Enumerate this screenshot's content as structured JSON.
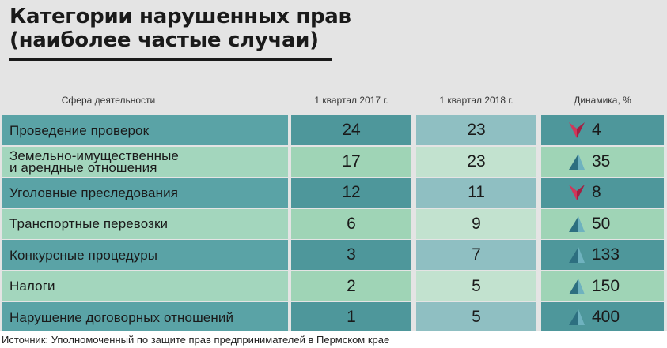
{
  "title_line1": "Категории нарушенных прав",
  "title_line2": "(наиболее частые случаи)",
  "headers": {
    "category": "Сфера деятельности",
    "q2017": "1 квартал 2017 г.",
    "q2018": "1 квартал 2018 г.",
    "dynamics": "Динамика, %"
  },
  "source": "Источник: Уполномоченный по защите прав предпринимателей в Пермском крае",
  "colors": {
    "label_odd": "#5aa3a6",
    "label_even": "#a3d6bd",
    "col17_odd": "#4e979b",
    "col17_even": "#9fd4b6",
    "col18_odd": "#8fbfc2",
    "col18_even": "#c2e2cf",
    "dyn_odd": "#4e979b",
    "dyn_even": "#9fd4b6",
    "arrow_up": "#2d6f80",
    "arrow_down": "#d0375a"
  },
  "chart_data": {
    "type": "table",
    "columns": [
      "Сфера деятельности",
      "1 квартал 2017 г.",
      "1 квартал 2018 г.",
      "Динамика, %"
    ],
    "rows": [
      {
        "category": "Проведение проверок",
        "q2017": 24,
        "q2018": 23,
        "trend": "down",
        "dynamics": 4
      },
      {
        "category": "Земельно-имущественные\nи арендные отношения",
        "q2017": 17,
        "q2018": 23,
        "trend": "up",
        "dynamics": 35
      },
      {
        "category": "Уголовные преследования",
        "q2017": 12,
        "q2018": 11,
        "trend": "down",
        "dynamics": 8
      },
      {
        "category": "Транспортные перевозки",
        "q2017": 6,
        "q2018": 9,
        "trend": "up",
        "dynamics": 50
      },
      {
        "category": "Конкурсные процедуры",
        "q2017": 3,
        "q2018": 7,
        "trend": "up",
        "dynamics": 133
      },
      {
        "category": "Налоги",
        "q2017": 2,
        "q2018": 5,
        "trend": "up",
        "dynamics": 150
      },
      {
        "category": "Нарушение договорных отношений",
        "q2017": 1,
        "q2018": 5,
        "trend": "up",
        "dynamics": 400
      }
    ]
  }
}
